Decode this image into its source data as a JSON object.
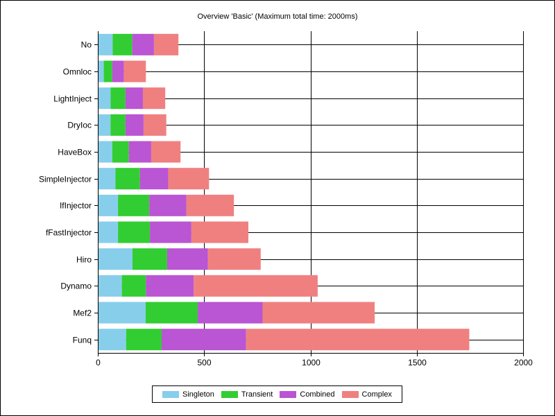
{
  "chart_data": {
    "type": "bar",
    "orientation": "horizontal",
    "stacked": true,
    "title": "Overview 'Basic' (Maximum total time: 2000ms)",
    "xlabel": "",
    "ylabel": "",
    "xlim": [
      0,
      2000
    ],
    "xticks": [
      0,
      500,
      1000,
      1500,
      2000
    ],
    "grid": true,
    "legend_position": "bottom",
    "categories": [
      "No",
      "Omnloc",
      "LightInject",
      "DryIoc",
      "HaveBox",
      "SimpleInjector",
      "IfInjector",
      "fFastInjector",
      "Hiro",
      "Dynamo",
      "Mef2",
      "Funq"
    ],
    "series": [
      {
        "name": "Singleton",
        "color": "#87ceeb",
        "values": [
          70,
          28,
          60,
          60,
          68,
          83,
          95,
          95,
          163,
          113,
          225,
          133
        ]
      },
      {
        "name": "Transient",
        "color": "#32cd32",
        "values": [
          92,
          40,
          70,
          70,
          78,
          115,
          147,
          150,
          163,
          113,
          245,
          167
        ]
      },
      {
        "name": "Combined",
        "color": "#ba55d3",
        "values": [
          102,
          55,
          82,
          85,
          105,
          133,
          175,
          195,
          192,
          225,
          305,
          397
        ]
      },
      {
        "name": "Complex",
        "color": "#f08080",
        "values": [
          115,
          103,
          105,
          107,
          138,
          192,
          223,
          268,
          248,
          583,
          527,
          1050
        ]
      }
    ]
  }
}
